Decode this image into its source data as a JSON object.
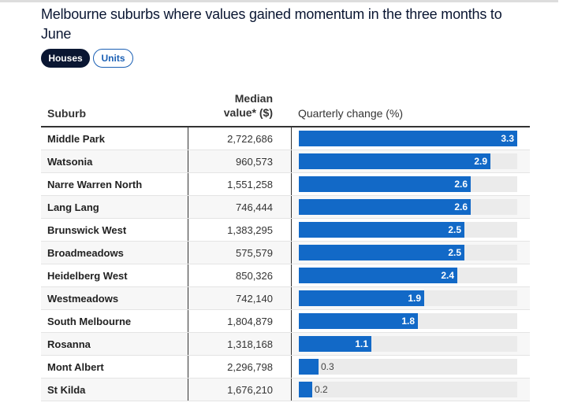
{
  "title": "Melbourne suburbs where values gained momentum in the three months to June",
  "toggles": {
    "houses": "Houses",
    "units": "Units"
  },
  "colors": {
    "bar": "#1269c7",
    "track": "#ebebeb",
    "active": "#0a1632"
  },
  "chart_data": {
    "type": "table",
    "columns": [
      "Suburb",
      "Median value* ($)",
      "Quarterly change (%)"
    ],
    "xlim": [
      0,
      3.3
    ],
    "rows": [
      {
        "suburb": "Middle Park",
        "median": "2,722,686",
        "change": 3.3
      },
      {
        "suburb": "Watsonia",
        "median": "960,573",
        "change": 2.9
      },
      {
        "suburb": "Narre Warren North",
        "median": "1,551,258",
        "change": 2.6
      },
      {
        "suburb": "Lang Lang",
        "median": "746,444",
        "change": 2.6
      },
      {
        "suburb": "Brunswick West",
        "median": "1,383,295",
        "change": 2.5
      },
      {
        "suburb": "Broadmeadows",
        "median": "575,579",
        "change": 2.5
      },
      {
        "suburb": "Heidelberg West",
        "median": "850,326",
        "change": 2.4
      },
      {
        "suburb": "Westmeadows",
        "median": "742,140",
        "change": 1.9
      },
      {
        "suburb": "South Melbourne",
        "median": "1,804,879",
        "change": 1.8
      },
      {
        "suburb": "Rosanna",
        "median": "1,318,168",
        "change": 1.1
      },
      {
        "suburb": "Mont Albert",
        "median": "2,296,798",
        "change": 0.3
      },
      {
        "suburb": "St Kilda",
        "median": "1,676,210",
        "change": 0.2
      }
    ]
  }
}
